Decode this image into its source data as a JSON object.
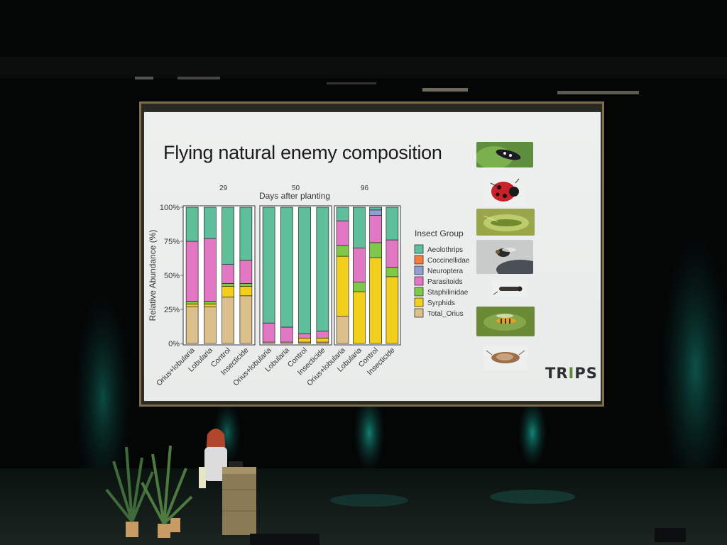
{
  "slide": {
    "title": "Flying natural enemy composition"
  },
  "logo": {
    "text_before": "TR",
    "text_mark": "I",
    "text_after": "PS"
  },
  "chart_data": {
    "type": "bar",
    "stacked": true,
    "title": "Days after planting",
    "ylabel": "Relative Abundance (%)",
    "xlabel": "",
    "ylim": [
      0,
      100
    ],
    "yticks": [
      "0%",
      "25%",
      "50%",
      "75%",
      "100%"
    ],
    "facets": [
      "29",
      "50",
      "96"
    ],
    "categories": [
      "Orius+lobularia",
      "Lobularia",
      "Control",
      "Insecticide"
    ],
    "legend": {
      "title": "Insect Group",
      "placement": "right"
    },
    "colors": {
      "Aeolothrips": "#5fbf9a",
      "Coccinellidae": "#f07f3c",
      "Neuroptera": "#8f9fd1",
      "Parasitoids": "#e277c3",
      "Staphilinidae": "#7ec84a",
      "Syrphids": "#f2cf1c",
      "Total_Orius": "#dcc08c"
    },
    "series": [
      {
        "name": "Total_Orius",
        "values": [
          [
            27,
            27,
            34,
            35
          ],
          [
            1,
            1,
            1,
            1
          ],
          [
            20,
            0,
            0,
            0
          ]
        ]
      },
      {
        "name": "Syrphids",
        "values": [
          [
            2,
            2,
            8,
            7
          ],
          [
            0,
            0,
            3,
            3
          ],
          [
            44,
            38,
            63,
            49
          ]
        ]
      },
      {
        "name": "Staphilinidae",
        "values": [
          [
            2,
            2,
            2,
            2
          ],
          [
            0,
            0,
            0,
            0
          ],
          [
            8,
            7,
            11,
            7
          ]
        ]
      },
      {
        "name": "Parasitoids",
        "values": [
          [
            44,
            46,
            14,
            17
          ],
          [
            14,
            11,
            3,
            5
          ],
          [
            18,
            25,
            20,
            20
          ]
        ]
      },
      {
        "name": "Neuroptera",
        "values": [
          [
            0,
            0,
            0,
            0
          ],
          [
            0,
            0,
            0,
            0
          ],
          [
            0,
            0,
            4,
            0
          ]
        ]
      },
      {
        "name": "Coccinellidae",
        "values": [
          [
            0,
            0,
            0,
            0
          ],
          [
            0,
            0,
            0,
            0
          ],
          [
            0,
            0,
            0,
            0
          ]
        ]
      },
      {
        "name": "Aeolothrips",
        "values": [
          [
            25,
            23,
            42,
            39
          ],
          [
            85,
            88,
            93,
            91
          ],
          [
            10,
            30,
            2,
            24
          ]
        ]
      }
    ],
    "legend_order": [
      "Aeolothrips",
      "Coccinellidae",
      "Neuroptera",
      "Parasitoids",
      "Staphilinidae",
      "Syrphids",
      "Total_Orius"
    ]
  },
  "photos": [
    {
      "name": "beetle-photo",
      "icon": "beetle-on-leaf"
    },
    {
      "name": "ladybird-photo",
      "icon": "ladybird"
    },
    {
      "name": "lacewing-photo",
      "icon": "lacewing"
    },
    {
      "name": "parasitoid-photo",
      "icon": "wasp"
    },
    {
      "name": "staphylinid-photo",
      "icon": "rove-beetle"
    },
    {
      "name": "hoverfly-photo",
      "icon": "hoverfly"
    },
    {
      "name": "orius-photo",
      "icon": "bug"
    }
  ]
}
